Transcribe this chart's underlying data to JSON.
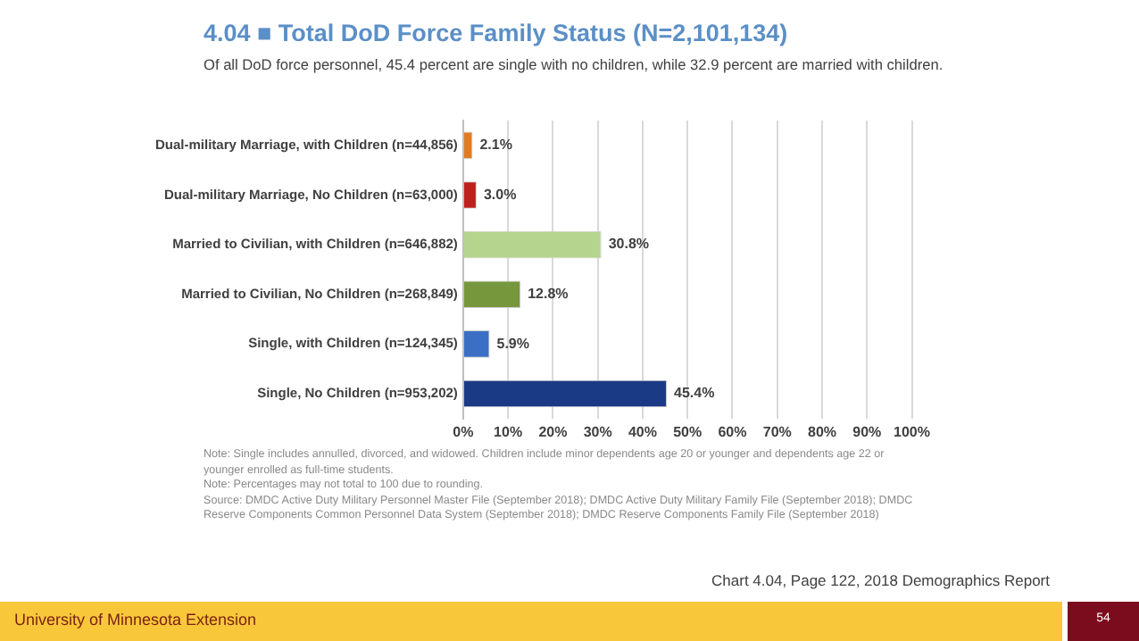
{
  "chart_data": {
    "type": "bar",
    "orientation": "horizontal",
    "title": "4.04 ■ Total DoD Force Family Status (N=2,101,134)",
    "subtitle": "Of all DoD force personnel, 45.4 percent are single with no children, while 32.9 percent are married with children.",
    "categories": [
      "Dual-military Marriage, with Children (n=44,856)",
      "Dual-military Marriage, No Children (n=63,000)",
      "Married to Civilian, with Children (n=646,882)",
      "Married to Civilian, No Children (n=268,849)",
      "Single, with Children (n=124,345)",
      "Single, No Children (n=953,202)"
    ],
    "values": [
      2.1,
      3.0,
      30.8,
      12.8,
      5.9,
      45.4
    ],
    "value_labels": [
      "2.1%",
      "3.0%",
      "30.8%",
      "12.8%",
      "5.9%",
      "45.4%"
    ],
    "colors": [
      "#e07b1f",
      "#c0201c",
      "#b5d48e",
      "#77973c",
      "#3a6fc4",
      "#1b3a86"
    ],
    "xlim": [
      0,
      100
    ],
    "xticks": [
      {
        "value": 0,
        "label": "0%"
      },
      {
        "value": 10,
        "label": "10%"
      },
      {
        "value": 20,
        "label": "20%"
      },
      {
        "value": 30,
        "label": "30%"
      },
      {
        "value": 40,
        "label": "40%"
      },
      {
        "value": 50,
        "label": "50%"
      },
      {
        "value": 60,
        "label": "60%"
      },
      {
        "value": 70,
        "label": "70%"
      },
      {
        "value": 80,
        "label": "80%"
      },
      {
        "value": 90,
        "label": "90%"
      },
      {
        "value": 100,
        "label": "100%"
      }
    ],
    "grid": "x",
    "annotations": [
      "Note: Single includes annulled, divorced, and widowed. Children include minor dependents age 20 or younger and dependents age 22 or younger enrolled as full-time students.",
      "Note: Percentages may not total to 100 due to rounding.",
      "Source: DMDC Active Duty Military Personnel Master File (September 2018); DMDC Active Duty Military Family File (September 2018); DMDC Reserve Components Common Personnel Data System (September 2018); DMDC Reserve Components Family File (September 2018)",
      "Chart 4.04, Page 122, 2018 Demographics Report",
      "University of Minnesota Extension",
      "54"
    ]
  }
}
